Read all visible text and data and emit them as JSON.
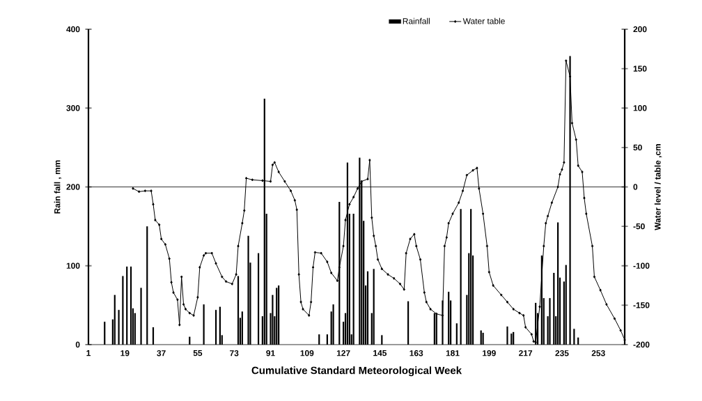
{
  "chart_data": {
    "type": "bar",
    "xlabel": "Cumulative Standard Meteorological Week",
    "ylabel": "Rain fall , mm",
    "y2label": "Water level / table ,cm",
    "xlim": [
      1,
      266
    ],
    "xticks": [
      1,
      19,
      37,
      55,
      73,
      91,
      109,
      127,
      145,
      163,
      181,
      199,
      217,
      235,
      253
    ],
    "ylim": [
      0,
      400
    ],
    "yticks": [
      0,
      100,
      200,
      300,
      400
    ],
    "y2lim": [
      -200,
      200
    ],
    "y2ticks": [
      -200,
      -150,
      -100,
      -50,
      0,
      50,
      100,
      150,
      200
    ],
    "legend": "top",
    "ref_lines": [
      {
        "axis": "y2",
        "value": 0,
        "color": "#000000"
      }
    ],
    "series": [
      {
        "name": "Rainfall",
        "color": "#000000",
        "x": [
          9,
          13,
          14,
          16,
          18,
          20,
          22,
          23,
          24,
          27,
          30,
          33,
          51,
          58,
          64,
          66,
          67,
          75,
          76,
          77,
          80,
          81,
          85,
          87,
          88,
          89,
          91,
          92,
          93,
          94,
          95,
          115,
          119,
          121,
          122,
          125,
          127,
          128,
          129,
          130,
          131,
          132,
          135,
          136,
          137,
          138,
          139,
          141,
          142,
          146,
          159,
          172,
          173,
          176,
          179,
          180,
          183,
          185,
          188,
          189,
          190,
          191,
          195,
          196,
          208,
          210,
          211,
          222,
          223,
          225,
          226,
          228,
          229,
          231,
          232,
          233,
          234,
          236,
          237,
          239,
          241,
          243
        ],
        "values": [
          29,
          32,
          63,
          44,
          87,
          99,
          99,
          46,
          40,
          72,
          150,
          22,
          10,
          51,
          44,
          48,
          12,
          87,
          34,
          42,
          138,
          104,
          116,
          36,
          312,
          166,
          40,
          63,
          36,
          72,
          75,
          13,
          13,
          42,
          51,
          181,
          29,
          40,
          231,
          166,
          13,
          166,
          237,
          207,
          157,
          75,
          93,
          40,
          96,
          12,
          55,
          40,
          38,
          56,
          67,
          56,
          27,
          172,
          63,
          116,
          172,
          113,
          18,
          15,
          23,
          14,
          16,
          53,
          40,
          113,
          59,
          36,
          59,
          91,
          36,
          155,
          85,
          80,
          101,
          366,
          20,
          9
        ]
      },
      {
        "name": "Water table",
        "type": "line",
        "axis": "y2",
        "color": "#000000",
        "marker": "diamond",
        "line_style": "solid",
        "x": [
          23,
          26,
          29,
          32,
          33,
          34,
          36,
          37,
          39,
          41,
          42,
          43,
          45,
          46,
          47,
          48,
          49,
          51,
          53,
          55,
          56,
          58,
          59,
          62,
          64,
          67,
          69,
          72,
          74,
          75,
          77,
          78,
          79,
          82,
          87,
          91,
          92,
          93,
          95,
          98,
          101,
          103,
          104,
          105,
          106,
          107,
          110,
          111,
          112,
          113,
          116,
          119,
          121,
          124,
          125,
          127,
          128,
          130,
          132,
          134,
          136,
          139,
          140,
          141,
          142,
          143,
          144,
          146,
          149,
          152,
          155,
          157,
          158,
          160,
          162,
          163,
          165,
          167,
          168,
          170,
          173,
          176,
          177,
          178,
          179,
          181,
          184,
          186,
          188,
          191,
          193,
          194,
          196,
          198,
          199,
          201,
          205,
          208,
          211,
          214,
          216,
          217,
          220,
          221,
          222,
          224,
          226,
          227,
          228,
          230,
          233,
          234,
          235,
          236,
          237,
          239,
          240,
          242,
          243,
          245,
          246,
          247,
          250,
          251,
          254,
          257,
          261,
          264,
          266
        ],
        "values": [
          -2,
          -6,
          -5,
          -5,
          -22,
          -42,
          -48,
          -66,
          -73,
          -91,
          -121,
          -134,
          -143,
          -175,
          -114,
          -149,
          -155,
          -160,
          -163,
          -140,
          -102,
          -87,
          -84,
          -84,
          -97,
          -114,
          -120,
          -123,
          -111,
          -75,
          -46,
          -30,
          11,
          9,
          8,
          7,
          28,
          31,
          19,
          7,
          -5,
          -17,
          -29,
          -111,
          -146,
          -155,
          -163,
          -146,
          -102,
          -83,
          -84,
          -95,
          -109,
          -119,
          -102,
          -75,
          -42,
          -22,
          -13,
          -2,
          7,
          10,
          34,
          -39,
          -62,
          -75,
          -92,
          -104,
          -111,
          -116,
          -123,
          -130,
          -84,
          -66,
          -60,
          -75,
          -92,
          -134,
          -146,
          -155,
          -161,
          -163,
          -75,
          -64,
          -46,
          -34,
          -20,
          -5,
          15,
          21,
          24,
          -2,
          -34,
          -75,
          -108,
          -125,
          -137,
          -146,
          -155,
          -160,
          -163,
          -178,
          -187,
          -196,
          -197,
          -152,
          -75,
          -46,
          -37,
          -20,
          0,
          16,
          22,
          31,
          160,
          140,
          81,
          60,
          27,
          19,
          -14,
          -34,
          -75,
          -114,
          -131,
          -149,
          -167,
          -182,
          -194
        ]
      }
    ]
  }
}
